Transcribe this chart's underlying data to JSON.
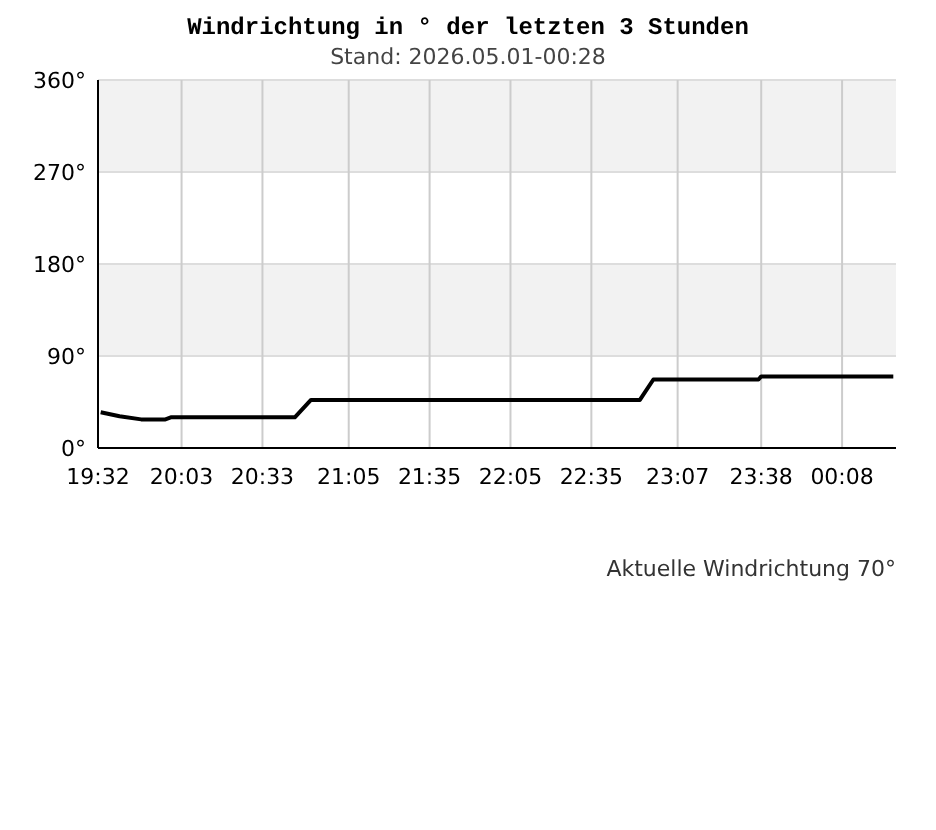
{
  "chart_data": {
    "type": "line",
    "title": "Windrichtung in ° der letzten 3 Stunden",
    "subtitle": "Stand: 2026.05.01-00:28",
    "x": [
      "2026-04-30T19:33",
      "2026-04-30T19:40",
      "2026-04-30T19:48",
      "2026-04-30T19:57",
      "2026-04-30T19:59",
      "2026-04-30T20:45",
      "2026-04-30T20:51",
      "2026-04-30T22:53",
      "2026-04-30T22:58",
      "2026-04-30T23:37",
      "2026-04-30T23:38",
      "2026-05-01T00:27"
    ],
    "series": [
      {
        "color": "#000000",
        "values": [
          35,
          31,
          28,
          28,
          30,
          30,
          47,
          47,
          67,
          67,
          70,
          70
        ]
      }
    ],
    "xlim": [
      "2026-04-30T19:32",
      "2026-05-01T00:28"
    ],
    "xticks": [
      {
        "value": "2026-04-30T19:32",
        "label": "19:32"
      },
      {
        "value": "2026-04-30T20:03",
        "label": "20:03"
      },
      {
        "value": "2026-04-30T20:33",
        "label": "20:33"
      },
      {
        "value": "2026-04-30T21:05",
        "label": "21:05"
      },
      {
        "value": "2026-04-30T21:35",
        "label": "21:35"
      },
      {
        "value": "2026-04-30T22:05",
        "label": "22:05"
      },
      {
        "value": "2026-04-30T22:35",
        "label": "22:35"
      },
      {
        "value": "2026-04-30T23:07",
        "label": "23:07"
      },
      {
        "value": "2026-04-30T23:38",
        "label": "23:38"
      },
      {
        "value": "2026-05-01T00:08",
        "label": "00:08"
      }
    ],
    "ylim": [
      0,
      360
    ],
    "yticks": [
      {
        "value": 0,
        "label": "0°"
      },
      {
        "value": 90,
        "label": "90°"
      },
      {
        "value": 180,
        "label": "180°"
      },
      {
        "value": 270,
        "label": "270°"
      },
      {
        "value": 360,
        "label": "360°"
      }
    ],
    "bands": [
      {
        "axis": "y",
        "from": 90,
        "to": 180,
        "color": "#f2f2f2"
      },
      {
        "axis": "y",
        "from": 270,
        "to": 360,
        "color": "#f2f2f2"
      }
    ],
    "grid": true,
    "marker": "none",
    "line_style": "solid",
    "annotations": [
      "Aktuelle Windrichtung 70°"
    ]
  }
}
